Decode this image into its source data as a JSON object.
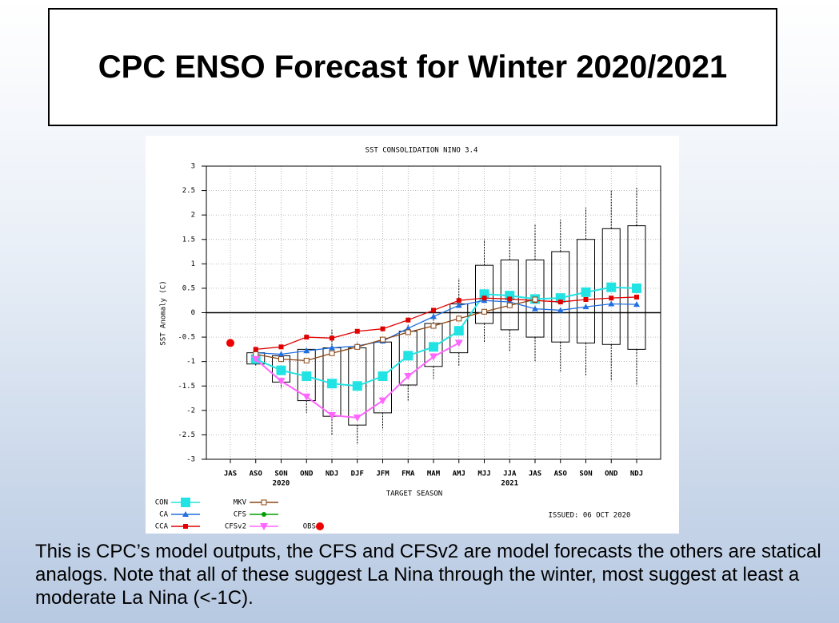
{
  "slide_title": "CPC ENSO Forecast for Winter 2020/2021",
  "caption": "This is CPC’s model outputs, the CFS and CFSv2 are model forecasts the others are statical analogs.  Note that all of these suggest La Nina through the winter, most suggest at least a moderate La Nina (<-1C).",
  "chart_data": {
    "type": "line",
    "title": "SST CONSOLIDATION NINO 3.4",
    "y_label": "SST Anomaly (C)",
    "x_label": "TARGET SEASON",
    "annotation": "ISSUED: 06 OCT 2020",
    "categories": [
      "JAS",
      "ASO",
      "SON",
      "OND",
      "NDJ",
      "DJF",
      "JFM",
      "FMA",
      "MAM",
      "AMJ",
      "MJJ",
      "JJA",
      "JAS",
      "ASO",
      "SON",
      "OND",
      "NDJ"
    ],
    "year_labels": [
      null,
      null,
      "2020",
      null,
      null,
      null,
      null,
      null,
      null,
      null,
      null,
      "2021",
      null,
      null,
      null,
      null,
      null
    ],
    "ylim": [
      -3,
      3
    ],
    "yticks": [
      -3,
      -2.5,
      -2,
      -1.5,
      -1,
      -0.5,
      0,
      0.5,
      1,
      1.5,
      2,
      2.5,
      3
    ],
    "grid": true,
    "series": [
      {
        "name": "CON",
        "color": "#22e3e3",
        "marker": "square",
        "values": [
          null,
          -0.95,
          -1.18,
          -1.3,
          -1.45,
          -1.5,
          -1.3,
          -0.88,
          -0.7,
          -0.37,
          0.38,
          0.35,
          0.28,
          0.3,
          0.42,
          0.52,
          0.5
        ]
      },
      {
        "name": "CA",
        "color": "#1f6fe0",
        "marker": "triangle",
        "values": [
          null,
          -0.82,
          -0.85,
          -0.78,
          -0.72,
          -0.68,
          -0.58,
          -0.32,
          -0.08,
          0.15,
          0.25,
          0.22,
          0.08,
          0.05,
          0.12,
          0.18,
          0.17
        ]
      },
      {
        "name": "CCA",
        "color": "#e00000",
        "marker": "square-small",
        "values": [
          null,
          -0.75,
          -0.7,
          -0.5,
          -0.52,
          -0.38,
          -0.33,
          -0.15,
          0.05,
          0.25,
          0.3,
          0.28,
          0.25,
          0.22,
          0.27,
          0.3,
          0.32
        ]
      },
      {
        "name": "MKV",
        "color": "#8b4513",
        "marker": "square-open",
        "values": [
          null,
          -0.85,
          -0.95,
          -0.98,
          -0.83,
          -0.7,
          -0.55,
          -0.4,
          -0.27,
          -0.12,
          0.02,
          0.15,
          0.27,
          null,
          null,
          null,
          null
        ]
      },
      {
        "name": "CFS",
        "color": "#00a000",
        "marker": "dot",
        "values": [
          null,
          null,
          null,
          null,
          null,
          null,
          null,
          null,
          null,
          null,
          null,
          null,
          null,
          null,
          null,
          null,
          null
        ]
      },
      {
        "name": "CFSv2",
        "color": "#ff66ff",
        "marker": "triangle-down",
        "values": [
          null,
          -0.95,
          -1.4,
          -1.72,
          -2.1,
          -2.15,
          -1.8,
          -1.3,
          -0.9,
          -0.62,
          null,
          null,
          null,
          null,
          null,
          null,
          null
        ]
      },
      {
        "name": "OBS",
        "color": "#ee0000",
        "marker": "obs",
        "values": [
          -0.62,
          null,
          null,
          null,
          null,
          null,
          null,
          null,
          null,
          null,
          null,
          null,
          null,
          null,
          null,
          null,
          null
        ]
      }
    ],
    "boxes": [
      null,
      {
        "q1": -1.05,
        "q3": -0.82,
        "min": -1.08,
        "max": -0.8
      },
      {
        "q1": -1.42,
        "q3": -0.88,
        "min": -1.55,
        "max": -0.78
      },
      {
        "q1": -1.8,
        "q3": -0.75,
        "min": -2.05,
        "max": -0.7
      },
      {
        "q1": -2.12,
        "q3": -0.72,
        "min": -2.5,
        "max": -0.35
      },
      {
        "q1": -2.3,
        "q3": -0.72,
        "min": -2.7,
        "max": -0.6
      },
      {
        "q1": -2.05,
        "q3": -0.6,
        "min": -2.4,
        "max": -0.5
      },
      {
        "q1": -1.48,
        "q3": -0.38,
        "min": -1.8,
        "max": -0.25
      },
      {
        "q1": -1.1,
        "q3": -0.22,
        "min": -1.35,
        "max": 0.08
      },
      {
        "q1": -0.82,
        "q3": 0.18,
        "min": -1.1,
        "max": 0.7
      },
      {
        "q1": -0.22,
        "q3": 0.97,
        "min": -0.6,
        "max": 1.5
      },
      {
        "q1": -0.35,
        "q3": 1.08,
        "min": -0.8,
        "max": 1.55
      },
      {
        "q1": -0.5,
        "q3": 1.08,
        "min": -1.0,
        "max": 1.8
      },
      {
        "q1": -0.6,
        "q3": 1.25,
        "min": -1.2,
        "max": 1.9
      },
      {
        "q1": -0.62,
        "q3": 1.5,
        "min": -1.3,
        "max": 2.15
      },
      {
        "q1": -0.65,
        "q3": 1.72,
        "min": -1.4,
        "max": 2.5
      },
      {
        "q1": -0.75,
        "q3": 1.78,
        "min": -1.5,
        "max": 2.58
      }
    ]
  }
}
